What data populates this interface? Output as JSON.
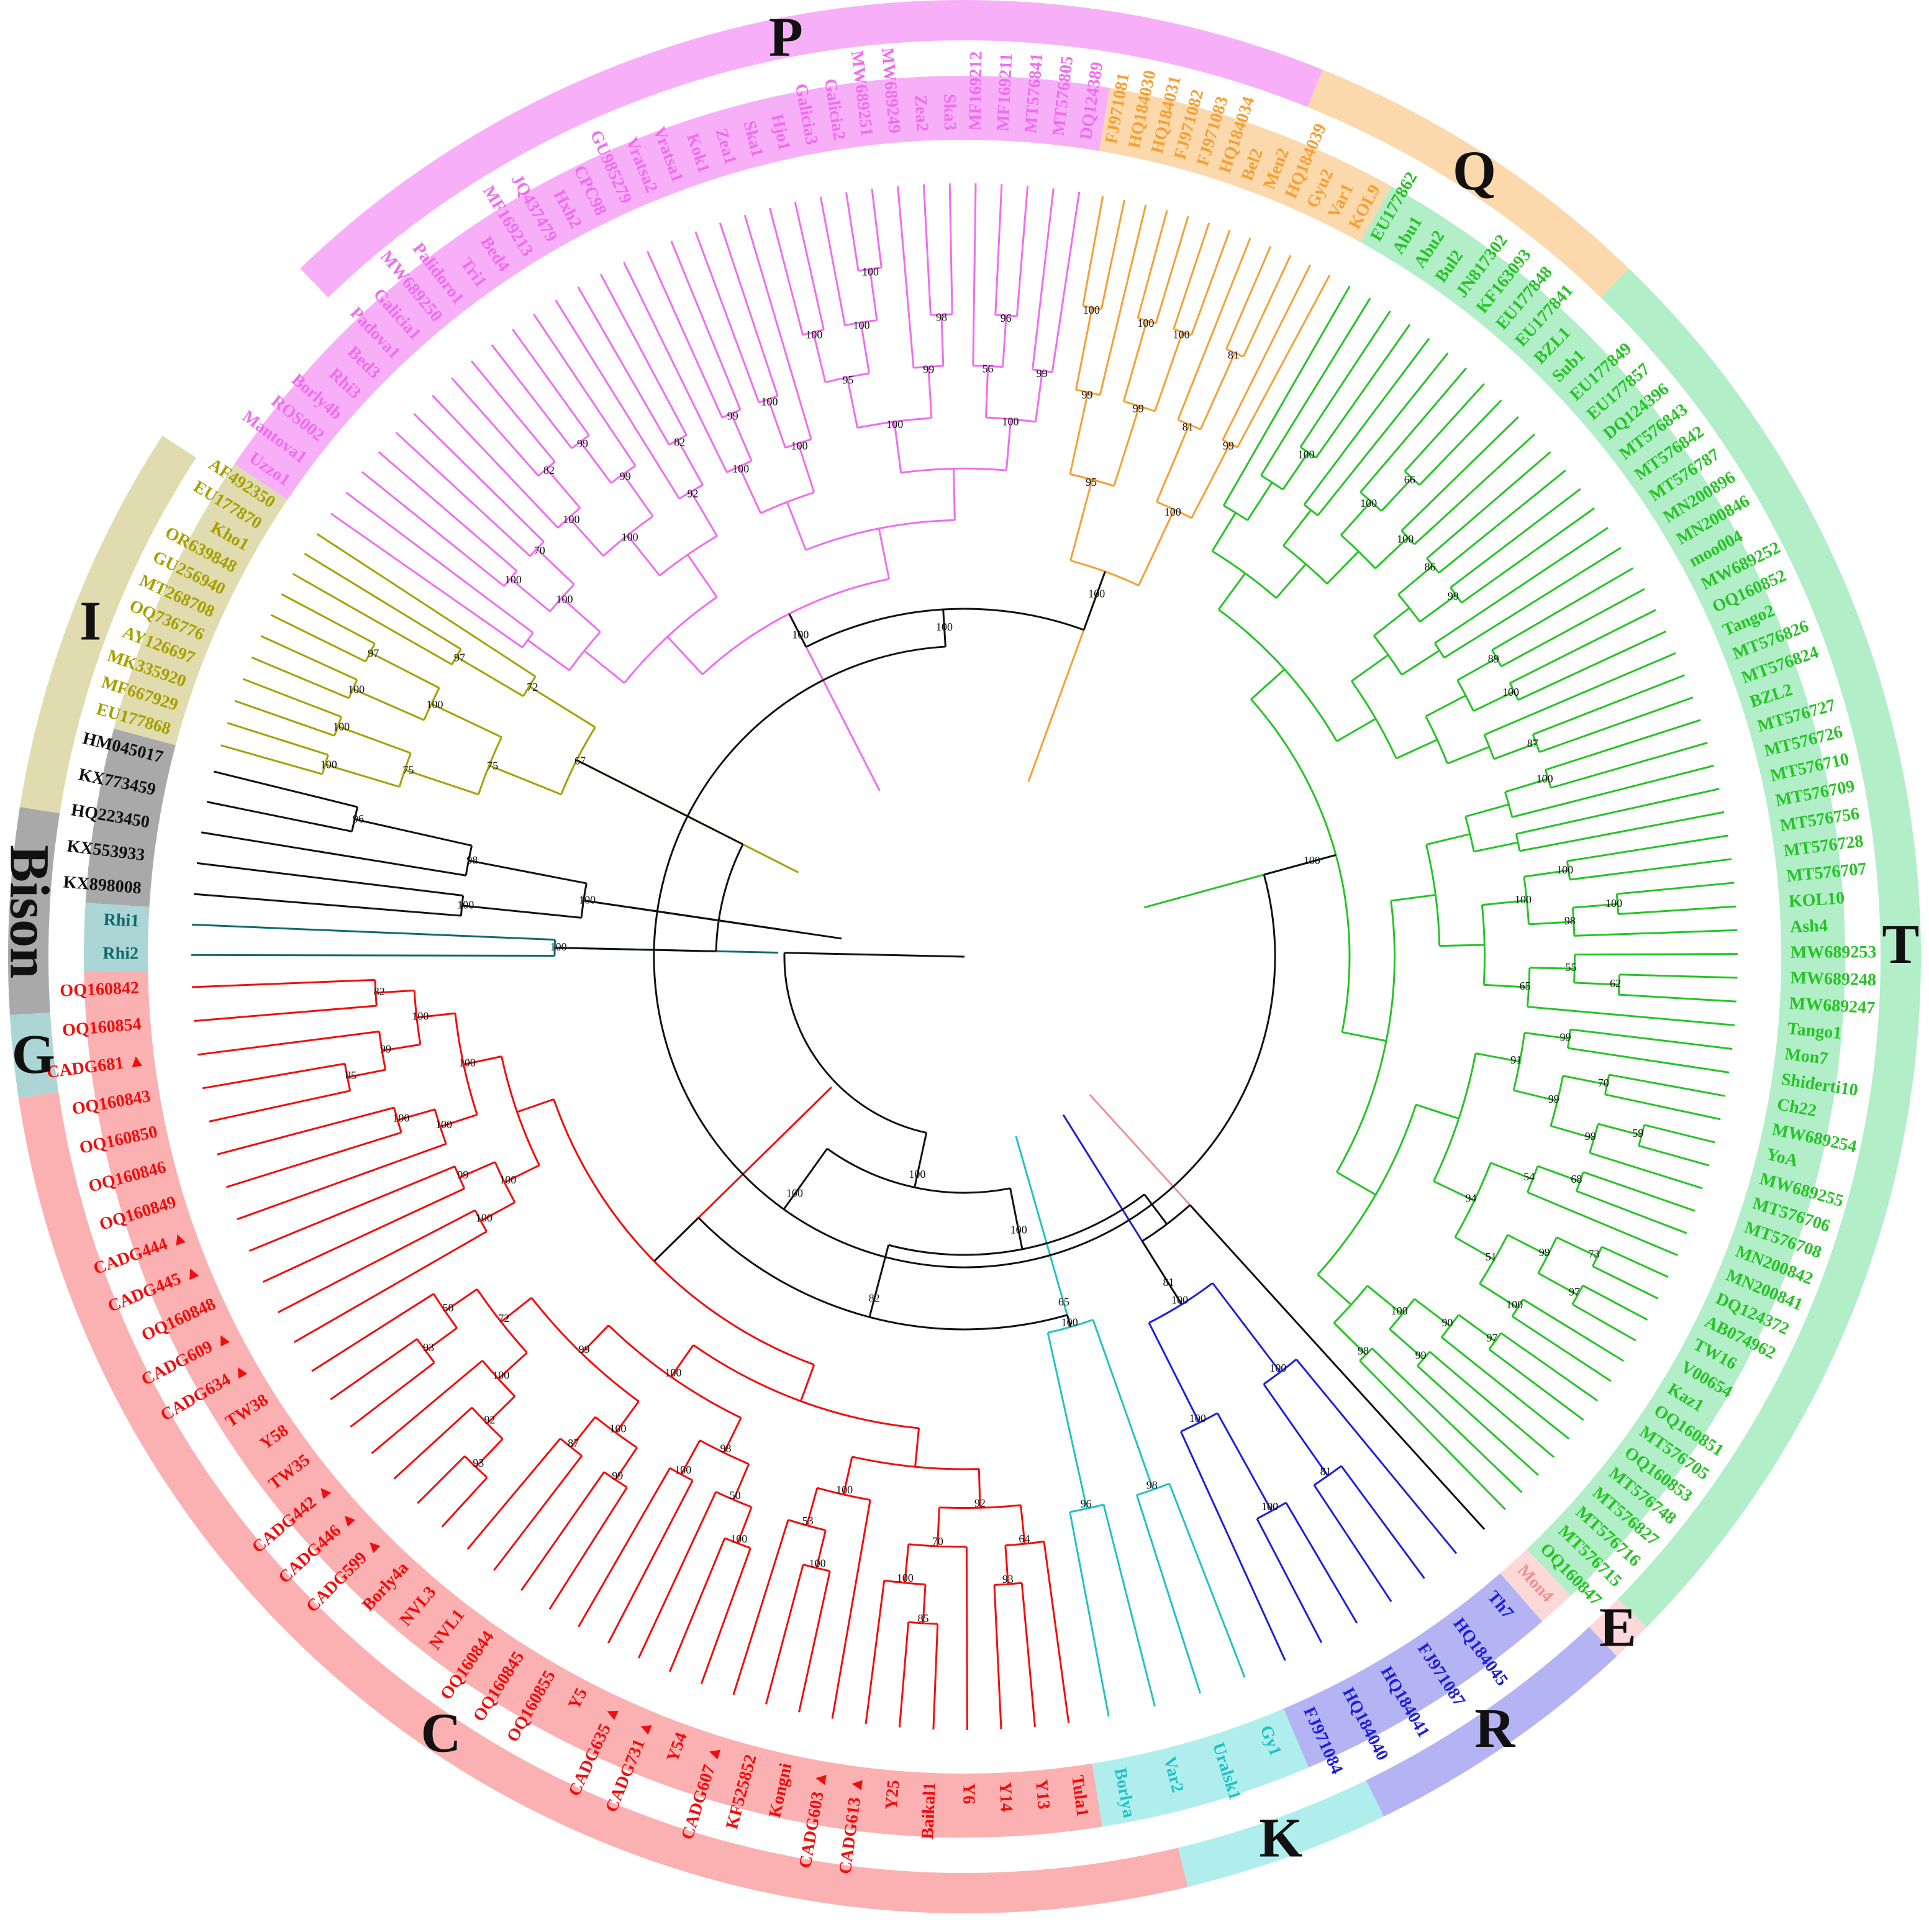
{
  "clades": [
    {
      "id": "P",
      "label": "P",
      "color": "#f06cf0",
      "band": "#f7b0f7",
      "ringStart": 68.0,
      "ringEnd": 134.0,
      "wedgeStart": 80.5,
      "wedgeEnd": 146.0,
      "hanging": "100",
      "boots": [
        "100",
        "96",
        "98",
        "100",
        "100",
        "99",
        "82",
        "99",
        "56",
        "99",
        "95",
        "100",
        "99",
        "82",
        "99",
        "100",
        "70",
        "100",
        "100",
        "100",
        "100",
        "100",
        "92",
        "100",
        "100"
      ],
      "tips": [
        "DQ124389",
        "MT576805",
        "MT576841",
        "MF169211",
        "MF169212",
        "Ska3",
        "Zea2",
        "MW689249",
        "MW689251",
        "Galicia2",
        "Galicia3",
        "Hjo1",
        "Ska1",
        "Zea1",
        "Kok1",
        "Vratsa1",
        "Vratsa2",
        "GU985279",
        "CPC98",
        "Hxh2",
        "JQ437479",
        "MF169213",
        "Bed4",
        "Tri1",
        "Palidoro1",
        "MW689250",
        "Galicia1",
        "Padova1",
        "Bed3",
        "Rhi3",
        "Borly4b",
        "ROS002",
        "Mantova1",
        "Uzzo1"
      ]
    },
    {
      "id": "Q",
      "label": "Q",
      "color": "#f5a033",
      "band": "#fbd9ac",
      "ringStart": 46.0,
      "ringEnd": 68.0,
      "wedgeStart": 61.0,
      "wedgeEnd": 80.5,
      "hanging": "100",
      "boots": [
        "81",
        "100",
        "100",
        "100",
        "99",
        "81",
        "99",
        "99",
        "100",
        "95"
      ],
      "tips": [
        "KOL9",
        "Var1",
        "Gyu2",
        "HQ184039",
        "Men2",
        "Bel2",
        "HQ184034",
        "FJ971083",
        "FJ971082",
        "HQ184031",
        "HQ184030",
        "FJ971081"
      ]
    },
    {
      "id": "I",
      "label": "I",
      "color": "#a6a000",
      "band": "#e0dcaf",
      "ringStart": 147.0,
      "ringEnd": 171.0,
      "wedgeStart": 146.0,
      "wedgeEnd": 165.0,
      "hanging": "",
      "boots": [
        "97",
        "100",
        "100",
        "100",
        "97",
        "100",
        "75",
        "72",
        "75",
        "67"
      ],
      "tips": [
        "AF492350",
        "EU177870",
        "Kho1",
        "OR639848",
        "GU256940",
        "MT268708",
        "OQ736776",
        "AY126697",
        "MK335920",
        "MF667929",
        "EU177868"
      ]
    },
    {
      "id": "Bison",
      "label": "Bison",
      "color": "#111111",
      "band": "#a9a9a9",
      "ringStart": 171.0,
      "ringEnd": 183.5,
      "wedgeStart": 165.0,
      "wedgeEnd": 176.5,
      "hanging": "",
      "boots": [
        "96",
        "98",
        "100",
        "100"
      ],
      "tips": [
        "HM045017",
        "KX773459",
        "HQ223450",
        "KX553933",
        "KX898008"
      ]
    },
    {
      "id": "G",
      "label": "G",
      "color": "#0e6b6b",
      "band": "#acd5d5",
      "ringStart": 183.5,
      "ringEnd": 188.5,
      "wedgeStart": 176.5,
      "wedgeEnd": 181.0,
      "hanging": "",
      "boots": [
        "100"
      ],
      "tips": [
        "Rhi1",
        "Rhi2"
      ]
    },
    {
      "id": "C",
      "label": "C",
      "color": "#f20c0c",
      "band": "#fbb1b1",
      "ringStart": 188.5,
      "ringEnd": 283.5,
      "wedgeStart": 181.0,
      "wedgeEnd": 279.0,
      "hanging": "",
      "boots": [
        "93",
        "93",
        "92",
        "85",
        "85",
        "50",
        "100",
        "87",
        "99",
        "100",
        "100",
        "100",
        "93",
        "82",
        "99",
        "100",
        "72",
        "100",
        "100",
        "50",
        "53",
        "70",
        "64",
        "100",
        "100",
        "99",
        "100",
        "99",
        "98",
        "100",
        "92",
        "100",
        "100",
        "100"
      ],
      "tips": [
        "OQ160842",
        "OQ160854",
        "CADG681 ▲",
        "OQ160843",
        "OQ160850",
        "OQ160846",
        "OQ160849",
        "CADG444 ▲",
        "CADG445 ▲",
        "OQ160848",
        "CADG609 ▲",
        "CADG634 ▲",
        "TW38",
        "Y58",
        "TW35",
        "CADG442 ▲",
        "CADG446 ▲",
        "CADG599 ▲",
        "Borly4a",
        "NVL3",
        "NVL1",
        "OQ160844",
        "OQ160845",
        "OQ160855",
        "Y5",
        "CADG635 ▲",
        "CADG731 ▲",
        "Y54",
        "CADG607 ▲",
        "KF525852",
        "Kongni",
        "CADG603 ▲",
        "CADG613 ▲",
        "Y25",
        "Baikal1",
        "Y6",
        "Y14",
        "Y13",
        "Tula1"
      ]
    },
    {
      "id": "K",
      "label": "K",
      "color": "#22c2c2",
      "band": "#b0eeee",
      "ringStart": 283.5,
      "ringEnd": 296.0,
      "wedgeStart": 279.0,
      "wedgeEnd": 293.0,
      "hanging": "65",
      "boots": [
        "96",
        "98",
        "100"
      ],
      "tips": [
        "Borlya",
        "Var2",
        "Uralsk1",
        "Gy1"
      ]
    },
    {
      "id": "R",
      "label": "R",
      "color": "#1e1edc",
      "band": "#b4b4f4",
      "ringStart": 296.0,
      "ringEnd": 313.0,
      "wedgeStart": 293.0,
      "wedgeEnd": 311.0,
      "hanging": "81",
      "boots": [
        "100",
        "81",
        "100",
        "100",
        "100",
        "100"
      ],
      "tips": [
        "FJ971084",
        "HQ184040",
        "HQ184041",
        "FJ971087",
        "HQ184045",
        "Th7"
      ]
    },
    {
      "id": "E",
      "label": "E",
      "color": "#f09090",
      "band": "#fcd9d9",
      "ringStart": 313.0,
      "ringEnd": 315.5,
      "wedgeStart": 311.0,
      "wedgeEnd": 313.5,
      "hanging": "",
      "boots": [],
      "tips": [
        "Mon4"
      ]
    },
    {
      "id": "T",
      "label": "T",
      "color": "#25c425",
      "band": "#b2eec8",
      "ringStart": 315.5,
      "ringEnd": 406.0,
      "wedgeStart": 313.5,
      "wedgeEnd": 421.0,
      "hanging": "100",
      "boots": [
        "97",
        "73",
        "59",
        "97",
        "100",
        "99",
        "68",
        "99",
        "70",
        "62",
        "100",
        "66",
        "99",
        "90",
        "51",
        "54",
        "99",
        "99",
        "55",
        "98",
        "100",
        "100",
        "87",
        "100",
        "89",
        "99",
        "86",
        "100",
        "100",
        "100",
        "98",
        "100",
        "94",
        "91",
        "65",
        "100"
      ],
      "tips": [
        "OQ160847",
        "MT576715",
        "MT576716",
        "MT576827",
        "MT576748",
        "OQ160853",
        "MT576705",
        "OQ160851",
        "Kaz1",
        "V00654",
        "TW16",
        "AB074962",
        "DQ124372",
        "MN200841",
        "MN200842",
        "MT576708",
        "MT576706",
        "MW689255",
        "YoA",
        "MW689254",
        "Ch22",
        "Shiderti10",
        "Mon7",
        "Tango1",
        "MW689247",
        "MW689248",
        "MW689253",
        "Ash4",
        "KOL10",
        "MT576707",
        "MT576728",
        "MT576756",
        "MT576709",
        "MT576710",
        "MT576726",
        "MT576727",
        "BZL2",
        "MT576824",
        "MT576826",
        "Tango2",
        "OQ160852",
        "MW689252",
        "moo004",
        "MN200846",
        "MN200896",
        "MT576787",
        "MT576842",
        "MT576843",
        "DQ124396",
        "EU177857",
        "EU177849",
        "Sub1",
        "BZL1",
        "EU177841",
        "EU177848",
        "KF163093",
        "JN817302",
        "Bul2",
        "Abu2",
        "Abu1",
        "EU177862"
      ]
    }
  ],
  "backbone_boots": [
    "100",
    "100",
    "100",
    "100",
    "82"
  ]
}
